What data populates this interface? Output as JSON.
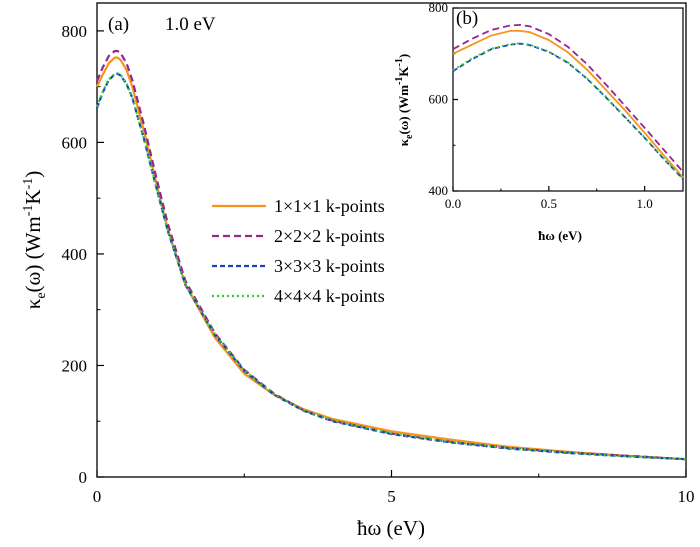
{
  "chart_data": [
    {
      "type": "line",
      "panel_label": "(a)",
      "annotation": "1.0 eV",
      "xlabel": "ħω (eV)",
      "ylabel_main": "κ",
      "ylabel_sub": "e",
      "ylabel_rest": "(ω) (Wm",
      "ylabel_sup1": "-1",
      "ylabel_mid": "K",
      "ylabel_sup2": "-1",
      "ylabel_end": ")",
      "xlim": [
        0,
        10
      ],
      "ylim": [
        0,
        850
      ],
      "xticks": [
        0,
        5,
        10
      ],
      "yticks": [
        0,
        200,
        400,
        600,
        800
      ],
      "grid": false,
      "legend_position": "center-right",
      "x": [
        0,
        0.1,
        0.2,
        0.3,
        0.35,
        0.4,
        0.5,
        0.6,
        0.8,
        1.0,
        1.2,
        1.5,
        2.0,
        2.5,
        3.0,
        3.5,
        4.0,
        5.0,
        6.0,
        7.0,
        8.0,
        9.0,
        10.0
      ],
      "series": [
        {
          "name": "1×1×1 k-points",
          "color": "#f7941d",
          "dash": "solid",
          "values": [
            700,
            722,
            742,
            752,
            752,
            748,
            730,
            700,
            620,
            530,
            445,
            345,
            250,
            185,
            148,
            122,
            104,
            82,
            67,
            54,
            45,
            38,
            32
          ]
        },
        {
          "name": "2×2×2 k-points",
          "color": "#93278f",
          "dash": "7,4",
          "values": [
            710,
            735,
            755,
            764,
            764,
            760,
            742,
            712,
            630,
            540,
            455,
            352,
            258,
            192,
            150,
            120,
            101,
            78,
            63,
            52,
            44,
            38,
            32
          ]
        },
        {
          "name": "3×3×3 k-points",
          "color": "#1f3fbf",
          "dash": "5,3",
          "values": [
            662,
            690,
            712,
            722,
            723,
            720,
            705,
            680,
            605,
            522,
            442,
            345,
            255,
            190,
            148,
            119,
            100,
            77,
            62,
            51,
            43,
            37,
            32
          ]
        },
        {
          "name": "4×4×4 k-points",
          "color": "#33cc33",
          "dash": "2,3",
          "values": [
            664,
            692,
            713,
            723,
            724,
            721,
            706,
            681,
            606,
            523,
            443,
            346,
            256,
            191,
            149,
            120,
            101,
            78,
            63,
            52,
            44,
            37,
            32
          ]
        }
      ]
    },
    {
      "type": "line",
      "panel_label": "(b)",
      "xlabel": "ħω (eV)",
      "ylabel_main": "κ",
      "ylabel_sub": "e",
      "ylabel_rest": "(ω) (Wm",
      "ylabel_sup1": "-1",
      "ylabel_mid": "K",
      "ylabel_sup2": "-1",
      "ylabel_end": ")",
      "xlim": [
        0,
        1.2
      ],
      "ylim": [
        400,
        800
      ],
      "xticks": [
        0.0,
        0.5,
        1.0
      ],
      "xtick_labels": [
        "0.0",
        "0.5",
        "1.0"
      ],
      "yticks": [
        400,
        600,
        800
      ],
      "grid": false,
      "x": [
        0,
        0.1,
        0.2,
        0.3,
        0.35,
        0.4,
        0.5,
        0.6,
        0.7,
        0.8,
        0.9,
        1.0,
        1.1,
        1.2
      ],
      "series": [
        {
          "name": "1×1×1 k-points",
          "color": "#f7941d",
          "dash": "solid",
          "values": [
            700,
            720,
            740,
            750,
            750,
            747,
            730,
            703,
            665,
            620,
            575,
            527,
            478,
            430
          ]
        },
        {
          "name": "2×2×2 k-points",
          "color": "#93278f",
          "dash": "7,4",
          "values": [
            710,
            733,
            752,
            762,
            763,
            760,
            743,
            715,
            677,
            632,
            585,
            538,
            490,
            442
          ]
        },
        {
          "name": "3×3×3 k-points",
          "color": "#1f3fbf",
          "dash": "5,3",
          "values": [
            662,
            688,
            710,
            720,
            722,
            719,
            704,
            680,
            645,
            604,
            560,
            516,
            470,
            426
          ]
        },
        {
          "name": "4×4×4 k-points",
          "color": "#33cc33",
          "dash": "2,3",
          "values": [
            664,
            690,
            711,
            721,
            723,
            720,
            705,
            681,
            646,
            605,
            561,
            517,
            471,
            427
          ]
        }
      ]
    }
  ]
}
